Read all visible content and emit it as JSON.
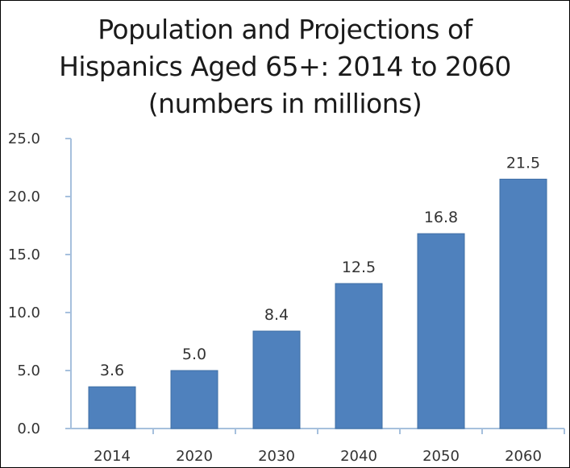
{
  "chart_data": {
    "type": "bar",
    "title_lines": [
      "Population and Projections of",
      "Hispanics Aged 65+: 2014 to 2060",
      "(numbers in millions)"
    ],
    "categories": [
      "2014",
      "2020",
      "2030",
      "2040",
      "2050",
      "2060"
    ],
    "values": [
      3.6,
      5.0,
      8.4,
      12.5,
      16.8,
      21.5
    ],
    "data_labels": [
      "3.6",
      "5.0",
      "8.4",
      "12.5",
      "16.8",
      "21.5"
    ],
    "y_ticks": [
      "0.0",
      "5.0",
      "10.0",
      "15.0",
      "20.0",
      "25.0"
    ],
    "ylim": [
      0,
      25
    ],
    "xlabel": "",
    "ylabel": "",
    "grid": false,
    "legend": "none",
    "bar_color": "#4F81BD",
    "axis_color": "#A6C0DD"
  }
}
